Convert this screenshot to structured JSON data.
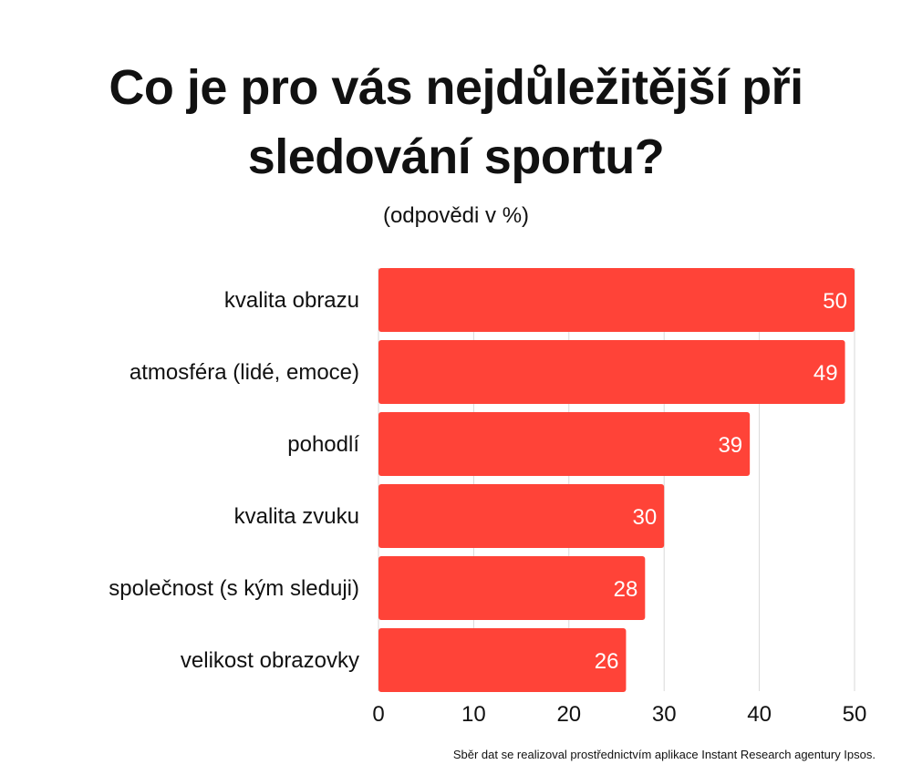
{
  "header": {
    "title": "Co je pro vás nejdůležitější při sledování sportu?",
    "subtitle": "(odpovědi v %)"
  },
  "footnote": "Sběr dat se realizoval prostřednictvím aplikace Instant Research agentury Ipsos.",
  "colors": {
    "bar": "#ff4338",
    "grid": "#d9d9d9",
    "text": "#111111"
  },
  "chart_data": {
    "type": "bar",
    "orientation": "horizontal",
    "title": "Co je pro vás nejdůležitější při sledování sportu?",
    "subtitle": "(odpovědi v %)",
    "categories": [
      "kvalita obrazu",
      "atmosféra (lidé, emoce)",
      "pohodlí",
      "kvalita zvuku",
      "společnost (s kým sleduji)",
      "velikost obrazovky"
    ],
    "values": [
      50,
      49,
      39,
      30,
      28,
      26
    ],
    "xlim": [
      0,
      50
    ],
    "xticks": [
      0,
      10,
      20,
      30,
      40,
      50
    ],
    "grid": true,
    "data_labels": true
  }
}
